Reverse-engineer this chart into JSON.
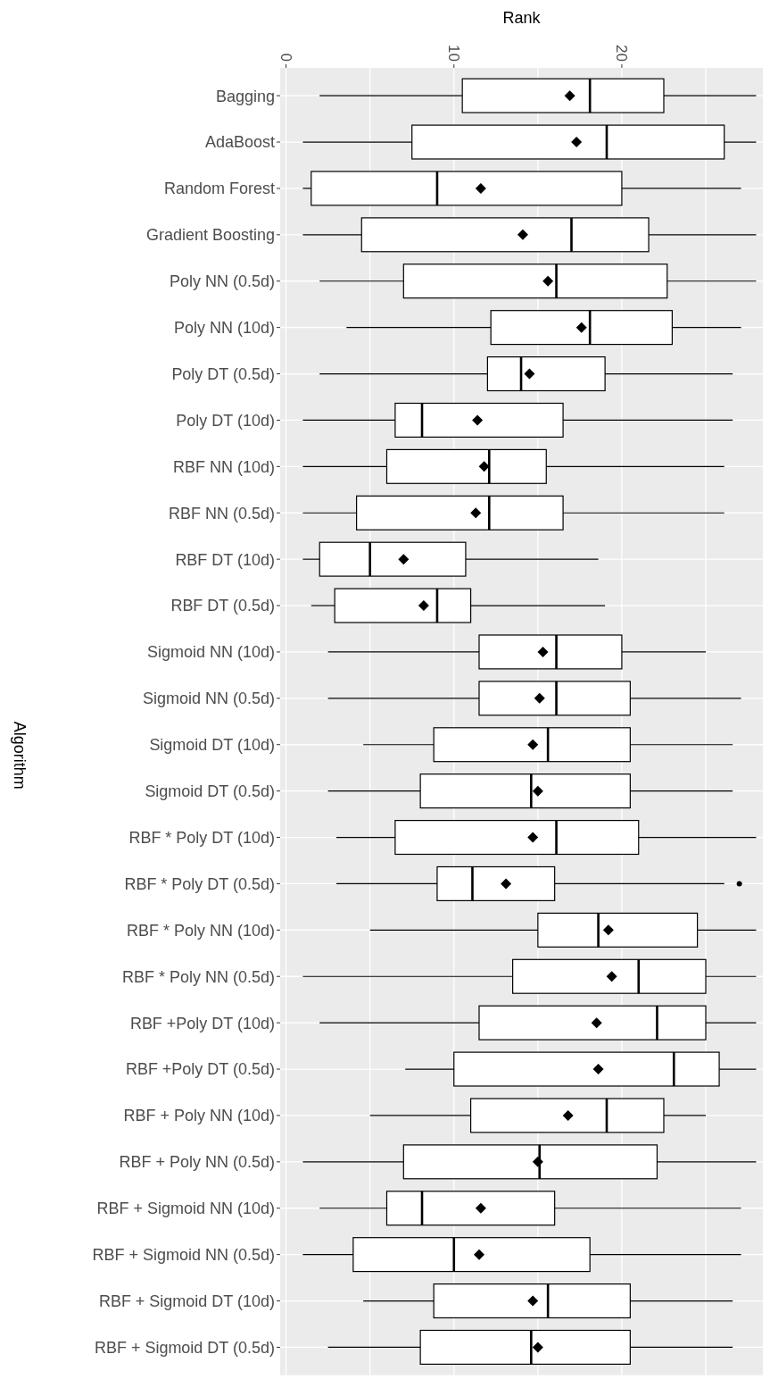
{
  "chart_data": {
    "type": "box",
    "orientation": "horizontal",
    "xlabel": "Rank",
    "ylabel": "Algorithm",
    "color": "#000000",
    "marker": "diamond",
    "grid": true,
    "categories": [
      "Bagging",
      "AdaBoost",
      "Random Forest",
      "Gradient Boosting",
      "Poly NN (0.5d)",
      "Poly NN (10d)",
      "Poly DT (0.5d)",
      "Poly DT (10d)",
      "RBF NN (10d)",
      "RBF NN (0.5d)",
      "RBF DT (10d)",
      "RBF DT (0.5d)",
      "Sigmoid NN (10d)",
      "Sigmoid NN (0.5d)",
      "Sigmoid DT (10d)",
      "Sigmoid DT (0.5d)",
      "RBF * Poly DT (10d)",
      "RBF * Poly DT (0.5d)",
      "RBF * Poly NN (10d)",
      "RBF * Poly NN (0.5d)",
      "RBF +Poly DT (10d)",
      "RBF +Poly DT (0.5d)",
      "RBF + Poly NN (10d)",
      "RBF + Poly NN (0.5d)",
      "RBF + Sigmoid NN (10d)",
      "RBF + Sigmoid NN (0.5d)",
      "RBF + Sigmoid DT (10d)",
      "RBF + Sigmoid DT (0.5d)"
    ],
    "xlim": [
      -0.35,
      28.4
    ],
    "xticks": [
      0,
      {
        "value": 5,
        "label": null
      },
      10,
      {
        "value": 15,
        "label": null
      },
      20,
      {
        "value": 25,
        "label": null
      }
    ],
    "boxes": [
      {
        "low": 2,
        "q1": 10.5,
        "median": 18.1,
        "q3": 22.5,
        "high": 28,
        "mean": 16.9
      },
      {
        "low": 1,
        "q1": 7.5,
        "median": 19.1,
        "q3": 26.1,
        "high": 28,
        "mean": 17.3
      },
      {
        "low": 1,
        "q1": 1.5,
        "median": 9,
        "q3": 20,
        "high": 27.1,
        "mean": 11.6
      },
      {
        "low": 1,
        "q1": 4.5,
        "median": 17,
        "q3": 21.6,
        "high": 28,
        "mean": 14.1
      },
      {
        "low": 2,
        "q1": 7,
        "median": 16.1,
        "q3": 22.7,
        "high": 28,
        "mean": 15.6
      },
      {
        "low": 3.6,
        "q1": 12.2,
        "median": 18.1,
        "q3": 23,
        "high": 27.1,
        "mean": 17.6
      },
      {
        "low": 2,
        "q1": 12,
        "median": 14,
        "q3": 19,
        "high": 26.6,
        "mean": 14.5
      },
      {
        "low": 1,
        "q1": 6.5,
        "median": 8.1,
        "q3": 16.5,
        "high": 26.6,
        "mean": 11.4
      },
      {
        "low": 1,
        "q1": 6,
        "median": 12.1,
        "q3": 15.5,
        "high": 26.1,
        "mean": 11.8
      },
      {
        "low": 1,
        "q1": 4.2,
        "median": 12.1,
        "q3": 16.5,
        "high": 26.1,
        "mean": 11.3
      },
      {
        "low": 1,
        "q1": 2,
        "median": 5,
        "q3": 10.7,
        "high": 18.6,
        "mean": 7
      },
      {
        "low": 1.5,
        "q1": 2.9,
        "median": 9,
        "q3": 11,
        "high": 19,
        "mean": 8.2
      },
      {
        "low": 2.5,
        "q1": 11.5,
        "median": 16.1,
        "q3": 20,
        "high": 25,
        "mean": 15.3
      },
      {
        "low": 2.5,
        "q1": 11.5,
        "median": 16.1,
        "q3": 20.5,
        "high": 27.1,
        "mean": 15.1
      },
      {
        "low": 4.6,
        "q1": 8.8,
        "median": 15.6,
        "q3": 20.5,
        "high": 26.6,
        "mean": 14.7
      },
      {
        "low": 2.5,
        "q1": 8,
        "median": 14.6,
        "q3": 20.5,
        "high": 26.6,
        "mean": 15
      },
      {
        "low": 3,
        "q1": 6.5,
        "median": 16.1,
        "q3": 21,
        "high": 28,
        "mean": 14.7
      },
      {
        "low": 3,
        "q1": 9,
        "median": 11.1,
        "q3": 16,
        "high": 26.1,
        "mean": 13.1,
        "outliers": [
          27
        ]
      },
      {
        "low": 5,
        "q1": 15,
        "median": 18.6,
        "q3": 24.5,
        "high": 28,
        "mean": 19.2
      },
      {
        "low": 1,
        "q1": 13.5,
        "median": 21,
        "q3": 25,
        "high": 28,
        "mean": 19.4
      },
      {
        "low": 2,
        "q1": 11.5,
        "median": 22.1,
        "q3": 25,
        "high": 28,
        "mean": 18.5
      },
      {
        "low": 7.1,
        "q1": 10,
        "median": 23.1,
        "q3": 25.8,
        "high": 28,
        "mean": 18.6
      },
      {
        "low": 5,
        "q1": 11,
        "median": 19.1,
        "q3": 22.5,
        "high": 25,
        "mean": 16.8
      },
      {
        "low": 1,
        "q1": 7,
        "median": 15.1,
        "q3": 22.1,
        "high": 28,
        "mean": 15
      },
      {
        "low": 2,
        "q1": 6,
        "median": 8.1,
        "q3": 16,
        "high": 27.1,
        "mean": 11.6
      },
      {
        "low": 1,
        "q1": 4,
        "median": 10,
        "q3": 18.1,
        "high": 27.1,
        "mean": 11.5
      },
      {
        "low": 4.6,
        "q1": 8.8,
        "median": 15.6,
        "q3": 20.5,
        "high": 26.6,
        "mean": 14.7
      },
      {
        "low": 2.5,
        "q1": 8,
        "median": 14.6,
        "q3": 20.5,
        "high": 26.6,
        "mean": 15
      }
    ]
  }
}
